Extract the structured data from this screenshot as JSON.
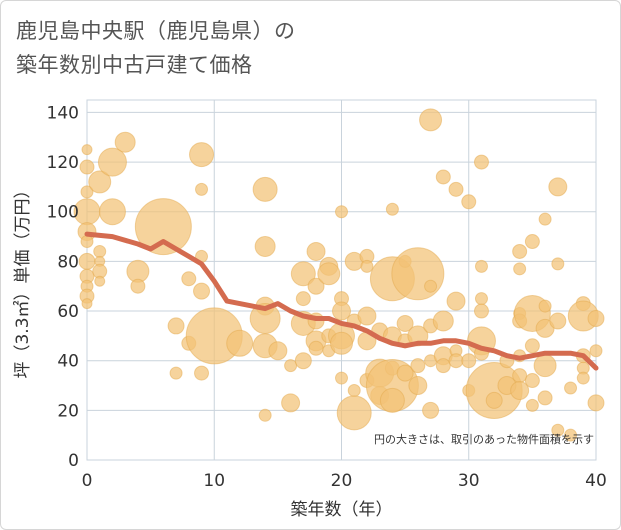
{
  "header": {
    "title_line1": "鹿児島中央駅（鹿児島県）の",
    "title_line2": "築年数別中古戸建て価格"
  },
  "colors": {
    "bubble_fill": "#f2c276",
    "bubble_stroke": "#e3a94e",
    "line": "#d46b4f",
    "grid": "#c9d3dc",
    "plot_bg": "#ffffff"
  },
  "chart_data": {
    "type": "scatter",
    "xlabel": "築年数（年）",
    "ylabel": "坪（3.3㎡）単価（万円）",
    "xlim": [
      0,
      40
    ],
    "ylim": [
      0,
      145
    ],
    "xticks": [
      0,
      10,
      20,
      30,
      40
    ],
    "yticks": [
      0,
      20,
      40,
      60,
      80,
      100,
      120,
      140
    ],
    "grid": true,
    "annotation": "円の大きさは、取引のあった物件面積を示す",
    "trend_line": {
      "x": [
        0,
        2,
        4,
        5,
        6,
        8,
        9,
        10,
        11,
        12,
        13,
        14,
        15,
        16,
        17,
        18,
        19,
        20,
        21,
        22,
        23,
        24,
        25,
        26,
        27,
        28,
        29,
        30,
        31,
        32,
        33,
        34,
        35,
        36,
        37,
        38,
        39,
        40
      ],
      "y": [
        91,
        90,
        87,
        85,
        88,
        82,
        79,
        72,
        64,
        63,
        62,
        61,
        63,
        60,
        58,
        57,
        57,
        55,
        54,
        52,
        49,
        47,
        46,
        47,
        47,
        48,
        48,
        47,
        45,
        44,
        42,
        41,
        42,
        43,
        43,
        43,
        42,
        37
      ]
    },
    "bubbles": [
      {
        "x": 0,
        "y": 125,
        "r": 5
      },
      {
        "x": 0,
        "y": 118,
        "r": 7
      },
      {
        "x": 0,
        "y": 108,
        "r": 6
      },
      {
        "x": 0,
        "y": 100,
        "r": 13
      },
      {
        "x": 0,
        "y": 92,
        "r": 9
      },
      {
        "x": 0,
        "y": 88,
        "r": 6
      },
      {
        "x": 0,
        "y": 80,
        "r": 8
      },
      {
        "x": 0,
        "y": 74,
        "r": 7
      },
      {
        "x": 0,
        "y": 70,
        "r": 6
      },
      {
        "x": 0,
        "y": 66,
        "r": 7
      },
      {
        "x": 0,
        "y": 63,
        "r": 5
      },
      {
        "x": 1,
        "y": 112,
        "r": 11
      },
      {
        "x": 1,
        "y": 84,
        "r": 6
      },
      {
        "x": 1,
        "y": 80,
        "r": 5
      },
      {
        "x": 1,
        "y": 76,
        "r": 7
      },
      {
        "x": 1,
        "y": 72,
        "r": 5
      },
      {
        "x": 2,
        "y": 120,
        "r": 14
      },
      {
        "x": 2,
        "y": 100,
        "r": 13
      },
      {
        "x": 3,
        "y": 128,
        "r": 10
      },
      {
        "x": 4,
        "y": 76,
        "r": 11
      },
      {
        "x": 4,
        "y": 70,
        "r": 7
      },
      {
        "x": 6,
        "y": 94,
        "r": 28
      },
      {
        "x": 7,
        "y": 54,
        "r": 8
      },
      {
        "x": 7,
        "y": 35,
        "r": 6
      },
      {
        "x": 8,
        "y": 73,
        "r": 7
      },
      {
        "x": 8,
        "y": 47,
        "r": 7
      },
      {
        "x": 9,
        "y": 123,
        "r": 12
      },
      {
        "x": 9,
        "y": 109,
        "r": 6
      },
      {
        "x": 9,
        "y": 82,
        "r": 6
      },
      {
        "x": 9,
        "y": 68,
        "r": 8
      },
      {
        "x": 9,
        "y": 35,
        "r": 7
      },
      {
        "x": 10,
        "y": 50,
        "r": 28
      },
      {
        "x": 12,
        "y": 47,
        "r": 13
      },
      {
        "x": 14,
        "y": 109,
        "r": 12
      },
      {
        "x": 14,
        "y": 86,
        "r": 10
      },
      {
        "x": 14,
        "y": 62,
        "r": 9
      },
      {
        "x": 14,
        "y": 57,
        "r": 15
      },
      {
        "x": 14,
        "y": 46,
        "r": 12
      },
      {
        "x": 14,
        "y": 18,
        "r": 6
      },
      {
        "x": 15,
        "y": 44,
        "r": 9
      },
      {
        "x": 16,
        "y": 38,
        "r": 6
      },
      {
        "x": 16,
        "y": 23,
        "r": 9
      },
      {
        "x": 17,
        "y": 75,
        "r": 12
      },
      {
        "x": 17,
        "y": 65,
        "r": 7
      },
      {
        "x": 17,
        "y": 55,
        "r": 12
      },
      {
        "x": 17,
        "y": 40,
        "r": 8
      },
      {
        "x": 18,
        "y": 84,
        "r": 9
      },
      {
        "x": 18,
        "y": 70,
        "r": 8
      },
      {
        "x": 18,
        "y": 56,
        "r": 8
      },
      {
        "x": 18,
        "y": 48,
        "r": 10
      },
      {
        "x": 18,
        "y": 45,
        "r": 7
      },
      {
        "x": 19,
        "y": 78,
        "r": 9
      },
      {
        "x": 19,
        "y": 75,
        "r": 11
      },
      {
        "x": 19,
        "y": 50,
        "r": 7
      },
      {
        "x": 19,
        "y": 44,
        "r": 6
      },
      {
        "x": 20,
        "y": 100,
        "r": 6
      },
      {
        "x": 20,
        "y": 65,
        "r": 7
      },
      {
        "x": 20,
        "y": 60,
        "r": 9
      },
      {
        "x": 20,
        "y": 50,
        "r": 13
      },
      {
        "x": 20,
        "y": 47,
        "r": 11
      },
      {
        "x": 20,
        "y": 33,
        "r": 6
      },
      {
        "x": 21,
        "y": 80,
        "r": 9
      },
      {
        "x": 21,
        "y": 56,
        "r": 7
      },
      {
        "x": 21,
        "y": 28,
        "r": 6
      },
      {
        "x": 21,
        "y": 19,
        "r": 17
      },
      {
        "x": 22,
        "y": 82,
        "r": 7
      },
      {
        "x": 22,
        "y": 78,
        "r": 6
      },
      {
        "x": 22,
        "y": 58,
        "r": 9
      },
      {
        "x": 22,
        "y": 48,
        "r": 9
      },
      {
        "x": 22,
        "y": 32,
        "r": 7
      },
      {
        "x": 23,
        "y": 52,
        "r": 8
      },
      {
        "x": 23,
        "y": 35,
        "r": 14
      },
      {
        "x": 23,
        "y": 26,
        "r": 9
      },
      {
        "x": 24,
        "y": 101,
        "r": 6
      },
      {
        "x": 24,
        "y": 73,
        "r": 22
      },
      {
        "x": 24,
        "y": 50,
        "r": 9
      },
      {
        "x": 24,
        "y": 37,
        "r": 7
      },
      {
        "x": 24,
        "y": 30,
        "r": 26
      },
      {
        "x": 24,
        "y": 24,
        "r": 12
      },
      {
        "x": 25,
        "y": 80,
        "r": 6
      },
      {
        "x": 25,
        "y": 55,
        "r": 8
      },
      {
        "x": 25,
        "y": 48,
        "r": 7
      },
      {
        "x": 25,
        "y": 35,
        "r": 8
      },
      {
        "x": 26,
        "y": 75,
        "r": 26
      },
      {
        "x": 26,
        "y": 50,
        "r": 10
      },
      {
        "x": 26,
        "y": 38,
        "r": 7
      },
      {
        "x": 26,
        "y": 30,
        "r": 9
      },
      {
        "x": 27,
        "y": 137,
        "r": 11
      },
      {
        "x": 27,
        "y": 70,
        "r": 6
      },
      {
        "x": 27,
        "y": 54,
        "r": 7
      },
      {
        "x": 27,
        "y": 40,
        "r": 6
      },
      {
        "x": 27,
        "y": 20,
        "r": 8
      },
      {
        "x": 28,
        "y": 114,
        "r": 7
      },
      {
        "x": 28,
        "y": 56,
        "r": 10
      },
      {
        "x": 28,
        "y": 42,
        "r": 9
      },
      {
        "x": 28,
        "y": 38,
        "r": 7
      },
      {
        "x": 29,
        "y": 109,
        "r": 7
      },
      {
        "x": 29,
        "y": 64,
        "r": 9
      },
      {
        "x": 29,
        "y": 44,
        "r": 6
      },
      {
        "x": 29,
        "y": 40,
        "r": 7
      },
      {
        "x": 30,
        "y": 104,
        "r": 7
      },
      {
        "x": 30,
        "y": 40,
        "r": 7
      },
      {
        "x": 30,
        "y": 28,
        "r": 6
      },
      {
        "x": 31,
        "y": 120,
        "r": 7
      },
      {
        "x": 31,
        "y": 78,
        "r": 6
      },
      {
        "x": 31,
        "y": 65,
        "r": 6
      },
      {
        "x": 31,
        "y": 60,
        "r": 7
      },
      {
        "x": 31,
        "y": 48,
        "r": 14
      },
      {
        "x": 31,
        "y": 43,
        "r": 7
      },
      {
        "x": 32,
        "y": 28,
        "r": 28
      },
      {
        "x": 32,
        "y": 24,
        "r": 8
      },
      {
        "x": 33,
        "y": 40,
        "r": 7
      },
      {
        "x": 33,
        "y": 30,
        "r": 9
      },
      {
        "x": 34,
        "y": 84,
        "r": 7
      },
      {
        "x": 34,
        "y": 77,
        "r": 6
      },
      {
        "x": 34,
        "y": 59,
        "r": 6
      },
      {
        "x": 34,
        "y": 56,
        "r": 7
      },
      {
        "x": 34,
        "y": 42,
        "r": 6
      },
      {
        "x": 34,
        "y": 34,
        "r": 7
      },
      {
        "x": 34,
        "y": 28,
        "r": 9
      },
      {
        "x": 35,
        "y": 88,
        "r": 7
      },
      {
        "x": 35,
        "y": 59,
        "r": 18
      },
      {
        "x": 35,
        "y": 46,
        "r": 7
      },
      {
        "x": 35,
        "y": 32,
        "r": 7
      },
      {
        "x": 35,
        "y": 22,
        "r": 6
      },
      {
        "x": 36,
        "y": 97,
        "r": 6
      },
      {
        "x": 36,
        "y": 62,
        "r": 6
      },
      {
        "x": 36,
        "y": 53,
        "r": 9
      },
      {
        "x": 36,
        "y": 38,
        "r": 11
      },
      {
        "x": 36,
        "y": 25,
        "r": 7
      },
      {
        "x": 37,
        "y": 110,
        "r": 9
      },
      {
        "x": 37,
        "y": 79,
        "r": 6
      },
      {
        "x": 37,
        "y": 56,
        "r": 8
      },
      {
        "x": 37,
        "y": 12,
        "r": 6
      },
      {
        "x": 38,
        "y": 29,
        "r": 6
      },
      {
        "x": 38,
        "y": 10,
        "r": 6
      },
      {
        "x": 39,
        "y": 63,
        "r": 7
      },
      {
        "x": 39,
        "y": 58,
        "r": 15
      },
      {
        "x": 39,
        "y": 42,
        "r": 7
      },
      {
        "x": 39,
        "y": 37,
        "r": 6
      },
      {
        "x": 39,
        "y": 33,
        "r": 6
      },
      {
        "x": 40,
        "y": 57,
        "r": 8
      },
      {
        "x": 40,
        "y": 44,
        "r": 6
      },
      {
        "x": 40,
        "y": 23,
        "r": 8
      }
    ]
  }
}
